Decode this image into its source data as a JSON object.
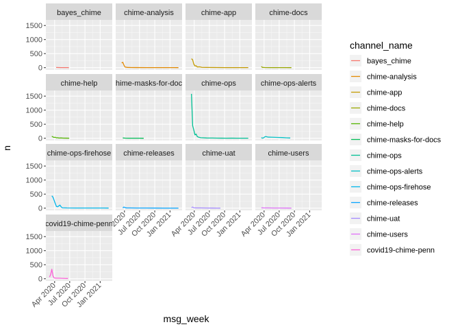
{
  "chart_data": {
    "type": "line",
    "subtype": "facet_wrap",
    "xlabel": "msg_week",
    "ylabel": "n",
    "x_ticks": [
      "Apr 2020",
      "Jul 2020",
      "Oct 2020",
      "Jan 2021"
    ],
    "x_tick_dates": [
      "2020-04-01",
      "2020-07-01",
      "2020-10-01",
      "2021-01-01"
    ],
    "xlim": [
      "2020-02-08",
      "2021-03-15"
    ],
    "ylim": [
      -80,
      1700
    ],
    "y_ticks": [
      0,
      500,
      1000,
      1500
    ],
    "grid": true,
    "legend": {
      "title": "channel_name",
      "position": "right"
    },
    "series": [
      {
        "name": "bayes_chime",
        "color": "#F8766D",
        "points": [
          [
            "2020-04-10",
            8
          ],
          [
            "2020-04-24",
            5
          ],
          [
            "2020-05-08",
            3
          ],
          [
            "2020-05-22",
            2
          ],
          [
            "2020-06-05",
            2
          ],
          [
            "2020-06-19",
            2
          ],
          [
            "2020-06-26",
            1
          ]
        ]
      },
      {
        "name": "chime-analysis",
        "color": "#E38900",
        "points": [
          [
            "2020-03-15",
            170
          ],
          [
            "2020-03-22",
            190
          ],
          [
            "2020-03-29",
            90
          ],
          [
            "2020-04-05",
            20
          ],
          [
            "2020-04-19",
            10
          ],
          [
            "2020-05-10",
            6
          ],
          [
            "2020-06-14",
            4
          ],
          [
            "2020-08-09",
            3
          ],
          [
            "2020-10-04",
            2
          ],
          [
            "2020-11-29",
            2
          ],
          [
            "2021-01-24",
            2
          ],
          [
            "2021-02-21",
            1
          ]
        ]
      },
      {
        "name": "chime-app",
        "color": "#C49A00",
        "points": [
          [
            "2020-03-15",
            320
          ],
          [
            "2020-03-22",
            280
          ],
          [
            "2020-03-29",
            130
          ],
          [
            "2020-04-05",
            60
          ],
          [
            "2020-04-12",
            70
          ],
          [
            "2020-04-19",
            25
          ],
          [
            "2020-05-03",
            30
          ],
          [
            "2020-05-17",
            12
          ],
          [
            "2020-06-14",
            8
          ],
          [
            "2020-08-09",
            5
          ],
          [
            "2020-10-04",
            3
          ],
          [
            "2020-11-29",
            3
          ],
          [
            "2021-01-24",
            2
          ],
          [
            "2021-02-21",
            2
          ]
        ]
      },
      {
        "name": "chime-docs",
        "color": "#99A800",
        "points": [
          [
            "2020-03-15",
            40
          ],
          [
            "2020-03-22",
            10
          ],
          [
            "2020-04-05",
            5
          ],
          [
            "2020-05-03",
            3
          ],
          [
            "2020-06-14",
            2
          ],
          [
            "2020-08-02",
            2
          ],
          [
            "2020-09-13",
            1
          ]
        ]
      },
      {
        "name": "chime-help",
        "color": "#53B400",
        "points": [
          [
            "2020-03-15",
            70
          ],
          [
            "2020-03-22",
            45
          ],
          [
            "2020-03-29",
            30
          ],
          [
            "2020-04-05",
            35
          ],
          [
            "2020-04-12",
            15
          ],
          [
            "2020-04-19",
            20
          ],
          [
            "2020-04-26",
            8
          ],
          [
            "2020-05-10",
            10
          ],
          [
            "2020-05-24",
            5
          ],
          [
            "2020-06-14",
            4
          ],
          [
            "2020-06-28",
            2
          ]
        ]
      },
      {
        "name": "chime-masks-for-docs",
        "color": "#00BC56",
        "points": [
          [
            "2020-03-22",
            10
          ],
          [
            "2020-04-05",
            5
          ],
          [
            "2020-04-26",
            3
          ],
          [
            "2020-05-24",
            2
          ],
          [
            "2020-06-28",
            2
          ],
          [
            "2020-07-26",
            1
          ]
        ]
      },
      {
        "name": "chime-ops",
        "color": "#00C094",
        "points": [
          [
            "2020-03-15",
            1580
          ],
          [
            "2020-03-22",
            450
          ],
          [
            "2020-03-29",
            300
          ],
          [
            "2020-04-05",
            120
          ],
          [
            "2020-04-12",
            150
          ],
          [
            "2020-04-19",
            60
          ],
          [
            "2020-04-26",
            40
          ],
          [
            "2020-05-10",
            20
          ],
          [
            "2020-06-14",
            10
          ],
          [
            "2020-07-19",
            8
          ],
          [
            "2020-08-16",
            5
          ],
          [
            "2020-09-13",
            4
          ],
          [
            "2020-10-11",
            3
          ],
          [
            "2020-11-15",
            4
          ],
          [
            "2020-12-13",
            3
          ],
          [
            "2021-01-17",
            2
          ],
          [
            "2021-02-21",
            2
          ]
        ]
      },
      {
        "name": "chime-ops-alerts",
        "color": "#00BFC4",
        "points": [
          [
            "2020-03-15",
            20
          ],
          [
            "2020-03-22",
            5
          ],
          [
            "2020-03-29",
            15
          ],
          [
            "2020-04-05",
            50
          ],
          [
            "2020-04-12",
            60
          ],
          [
            "2020-04-26",
            40
          ],
          [
            "2020-05-24",
            35
          ],
          [
            "2020-06-21",
            30
          ],
          [
            "2020-07-19",
            25
          ],
          [
            "2020-08-16",
            15
          ],
          [
            "2020-09-06",
            10
          ]
        ]
      },
      {
        "name": "chime-ops-firehose",
        "color": "#00B6EB",
        "points": [
          [
            "2020-03-15",
            440
          ],
          [
            "2020-03-22",
            390
          ],
          [
            "2020-03-29",
            280
          ],
          [
            "2020-04-05",
            160
          ],
          [
            "2020-04-12",
            60
          ],
          [
            "2020-04-19",
            50
          ],
          [
            "2020-04-26",
            80
          ],
          [
            "2020-05-03",
            110
          ],
          [
            "2020-05-10",
            50
          ],
          [
            "2020-05-17",
            15
          ],
          [
            "2020-06-14",
            8
          ],
          [
            "2020-08-09",
            6
          ],
          [
            "2020-10-04",
            5
          ],
          [
            "2020-11-29",
            5
          ],
          [
            "2021-01-24",
            5
          ],
          [
            "2021-02-21",
            4
          ]
        ]
      },
      {
        "name": "chime-releases",
        "color": "#06A4FF",
        "points": [
          [
            "2020-03-22",
            10
          ],
          [
            "2020-03-29",
            40
          ],
          [
            "2020-04-05",
            20
          ],
          [
            "2020-04-12",
            10
          ],
          [
            "2020-05-03",
            8
          ],
          [
            "2020-06-14",
            6
          ],
          [
            "2020-08-09",
            5
          ],
          [
            "2020-10-04",
            4
          ],
          [
            "2020-11-29",
            3
          ],
          [
            "2021-01-24",
            3
          ],
          [
            "2021-02-21",
            2
          ]
        ]
      },
      {
        "name": "chime-uat",
        "color": "#A58AFF",
        "points": [
          [
            "2020-03-15",
            20
          ],
          [
            "2020-03-22",
            40
          ],
          [
            "2020-03-29",
            15
          ],
          [
            "2020-04-12",
            10
          ],
          [
            "2020-05-10",
            8
          ],
          [
            "2020-06-14",
            5
          ],
          [
            "2020-07-19",
            4
          ],
          [
            "2020-08-16",
            3
          ],
          [
            "2020-09-06",
            2
          ]
        ]
      },
      {
        "name": "chime-users",
        "color": "#DF70F8",
        "points": [
          [
            "2020-03-15",
            15
          ],
          [
            "2020-03-29",
            10
          ],
          [
            "2020-04-26",
            8
          ],
          [
            "2020-05-31",
            6
          ],
          [
            "2020-07-05",
            5
          ],
          [
            "2020-08-16",
            4
          ],
          [
            "2020-09-13",
            3
          ]
        ]
      },
      {
        "name": "covid19-chime-penn",
        "color": "#FB61D7",
        "points": [
          [
            "2020-03-01",
            60
          ],
          [
            "2020-03-08",
            150
          ],
          [
            "2020-03-15",
            340
          ],
          [
            "2020-03-22",
            100
          ],
          [
            "2020-03-29",
            30
          ],
          [
            "2020-04-05",
            25
          ],
          [
            "2020-04-12",
            20
          ],
          [
            "2020-04-26",
            20
          ],
          [
            "2020-05-10",
            18
          ],
          [
            "2020-05-24",
            15
          ],
          [
            "2020-06-07",
            12
          ],
          [
            "2020-06-21",
            10
          ]
        ]
      },
      {
        "name": "",
        "color": "#FF6C91",
        "points": []
      }
    ]
  }
}
